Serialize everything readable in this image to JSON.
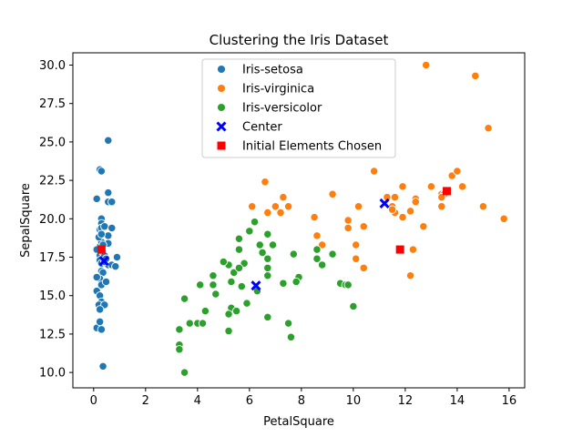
{
  "chart_data": {
    "type": "scatter",
    "title": "Clustering the Iris Dataset",
    "xlabel": "PetalSquare",
    "ylabel": "SepalSquare",
    "xlim": [
      -0.8,
      16.6
    ],
    "ylim": [
      9.0,
      30.8
    ],
    "xticks": [
      0,
      2,
      4,
      6,
      8,
      10,
      12,
      14,
      16
    ],
    "xtick_labels": [
      "0",
      "2",
      "4",
      "6",
      "8",
      "10",
      "12",
      "14",
      "16"
    ],
    "yticks": [
      10.0,
      12.5,
      15.0,
      17.5,
      20.0,
      22.5,
      25.0,
      27.5,
      30.0
    ],
    "ytick_labels": [
      "10.0",
      "12.5",
      "15.0",
      "17.5",
      "20.0",
      "22.5",
      "25.0",
      "27.5",
      "30.0"
    ],
    "grid": false,
    "legend_position": "top-center",
    "colors": {
      "setosa": "#1f77b4",
      "virginica": "#ff7f0e",
      "versicolor": "#2ca02c",
      "center": "#0000ff",
      "initial": "#ff0000"
    },
    "series": [
      {
        "name": "Iris-setosa",
        "marker": "circle",
        "color": "#1f77b4",
        "points": [
          [
            0.56,
            25.1
          ],
          [
            0.24,
            23.2
          ],
          [
            0.3,
            23.1
          ],
          [
            0.56,
            21.7
          ],
          [
            0.56,
            21.1
          ],
          [
            0.7,
            21.1
          ],
          [
            0.12,
            21.3
          ],
          [
            0.3,
            20.0
          ],
          [
            0.3,
            19.7
          ],
          [
            0.24,
            19.3
          ],
          [
            0.3,
            19.4
          ],
          [
            0.42,
            19.5
          ],
          [
            0.7,
            19.4
          ],
          [
            0.56,
            18.9
          ],
          [
            0.24,
            18.2
          ],
          [
            0.3,
            18.5
          ],
          [
            0.56,
            18.4
          ],
          [
            0.12,
            18.0
          ],
          [
            0.24,
            17.6
          ],
          [
            0.36,
            17.8
          ],
          [
            0.42,
            17.6
          ],
          [
            0.24,
            17.3
          ],
          [
            0.3,
            17.1
          ],
          [
            0.9,
            17.5
          ],
          [
            0.56,
            17.0
          ],
          [
            0.7,
            17.0
          ],
          [
            0.84,
            16.9
          ],
          [
            0.3,
            16.6
          ],
          [
            0.36,
            16.5
          ],
          [
            0.24,
            16.1
          ],
          [
            0.12,
            16.2
          ],
          [
            0.3,
            15.7
          ],
          [
            0.48,
            15.9
          ],
          [
            0.12,
            15.3
          ],
          [
            0.24,
            15.0
          ],
          [
            0.3,
            14.6
          ],
          [
            0.2,
            14.4
          ],
          [
            0.42,
            14.4
          ],
          [
            0.24,
            14.1
          ],
          [
            0.12,
            12.9
          ],
          [
            0.24,
            13.3
          ],
          [
            0.3,
            12.8
          ],
          [
            0.36,
            10.4
          ],
          [
            0.2,
            18.8
          ],
          [
            0.42,
            17.2
          ],
          [
            0.3,
            19.0
          ],
          [
            0.36,
            18.3
          ],
          [
            0.48,
            17.4
          ]
        ]
      },
      {
        "name": "Iris-virginica",
        "marker": "circle",
        "color": "#ff7f0e",
        "points": [
          [
            12.8,
            30.0
          ],
          [
            14.7,
            29.3
          ],
          [
            15.2,
            25.9
          ],
          [
            10.8,
            23.1
          ],
          [
            13.8,
            22.8
          ],
          [
            14.0,
            23.1
          ],
          [
            6.6,
            22.4
          ],
          [
            11.9,
            22.1
          ],
          [
            14.2,
            22.1
          ],
          [
            13.0,
            22.1
          ],
          [
            9.2,
            21.6
          ],
          [
            7.3,
            21.4
          ],
          [
            11.3,
            21.4
          ],
          [
            11.6,
            21.4
          ],
          [
            12.4,
            21.3
          ],
          [
            12.4,
            21.1
          ],
          [
            13.4,
            21.6
          ],
          [
            13.5,
            21.6
          ],
          [
            6.1,
            20.8
          ],
          [
            7.0,
            20.8
          ],
          [
            7.5,
            20.8
          ],
          [
            10.2,
            20.8
          ],
          [
            11.5,
            20.8
          ],
          [
            13.4,
            20.8
          ],
          [
            15.0,
            20.8
          ],
          [
            6.7,
            20.4
          ],
          [
            7.2,
            20.4
          ],
          [
            11.6,
            20.4
          ],
          [
            12.2,
            20.5
          ],
          [
            8.5,
            20.1
          ],
          [
            9.8,
            19.9
          ],
          [
            11.9,
            20.1
          ],
          [
            15.8,
            20.0
          ],
          [
            9.8,
            19.4
          ],
          [
            10.4,
            19.5
          ],
          [
            12.7,
            19.5
          ],
          [
            8.6,
            18.9
          ],
          [
            10.1,
            18.3
          ],
          [
            8.8,
            18.3
          ],
          [
            12.3,
            18.0
          ],
          [
            10.1,
            17.4
          ],
          [
            10.4,
            16.8
          ],
          [
            12.2,
            16.3
          ],
          [
            13.4,
            21.4
          ],
          [
            11.5,
            20.6
          ]
        ]
      },
      {
        "name": "Iris-versicolor",
        "marker": "circle",
        "color": "#2ca02c",
        "points": [
          [
            6.2,
            19.8
          ],
          [
            6.7,
            19.0
          ],
          [
            6.0,
            19.2
          ],
          [
            5.6,
            18.7
          ],
          [
            5.6,
            18.0
          ],
          [
            6.5,
            17.8
          ],
          [
            7.7,
            17.7
          ],
          [
            6.4,
            18.3
          ],
          [
            6.9,
            18.3
          ],
          [
            8.6,
            18.0
          ],
          [
            9.2,
            17.7
          ],
          [
            5.2,
            17.0
          ],
          [
            5.8,
            17.1
          ],
          [
            6.7,
            17.4
          ],
          [
            8.6,
            17.4
          ],
          [
            8.8,
            17.0
          ],
          [
            5.0,
            17.2
          ],
          [
            5.4,
            16.5
          ],
          [
            5.6,
            16.8
          ],
          [
            6.7,
            16.8
          ],
          [
            7.9,
            16.2
          ],
          [
            6.7,
            16.3
          ],
          [
            4.6,
            16.3
          ],
          [
            4.6,
            15.7
          ],
          [
            5.3,
            15.9
          ],
          [
            5.7,
            15.6
          ],
          [
            6.3,
            15.3
          ],
          [
            7.3,
            15.8
          ],
          [
            7.8,
            15.9
          ],
          [
            9.5,
            15.8
          ],
          [
            9.7,
            15.7
          ],
          [
            9.8,
            15.7
          ],
          [
            4.1,
            15.7
          ],
          [
            4.7,
            15.1
          ],
          [
            5.9,
            14.5
          ],
          [
            5.3,
            14.2
          ],
          [
            5.5,
            14.0
          ],
          [
            4.3,
            14.0
          ],
          [
            10.0,
            14.3
          ],
          [
            3.5,
            14.8
          ],
          [
            5.2,
            13.8
          ],
          [
            6.7,
            13.6
          ],
          [
            3.7,
            13.2
          ],
          [
            4.0,
            13.2
          ],
          [
            4.2,
            13.2
          ],
          [
            7.5,
            13.2
          ],
          [
            3.3,
            12.8
          ],
          [
            5.2,
            12.7
          ],
          [
            7.6,
            12.3
          ],
          [
            3.3,
            11.8
          ],
          [
            3.3,
            11.5
          ],
          [
            3.5,
            10.0
          ]
        ]
      },
      {
        "name": "Center",
        "marker": "x",
        "color": "#0000ff",
        "points": [
          [
            0.4,
            17.25
          ],
          [
            11.2,
            21.0
          ],
          [
            6.25,
            15.65
          ]
        ]
      },
      {
        "name": "Initial Elements Chosen",
        "marker": "square",
        "color": "#ff0000",
        "points": [
          [
            0.3,
            18.0
          ],
          [
            13.6,
            21.8
          ],
          [
            11.8,
            18.0
          ]
        ]
      }
    ]
  }
}
